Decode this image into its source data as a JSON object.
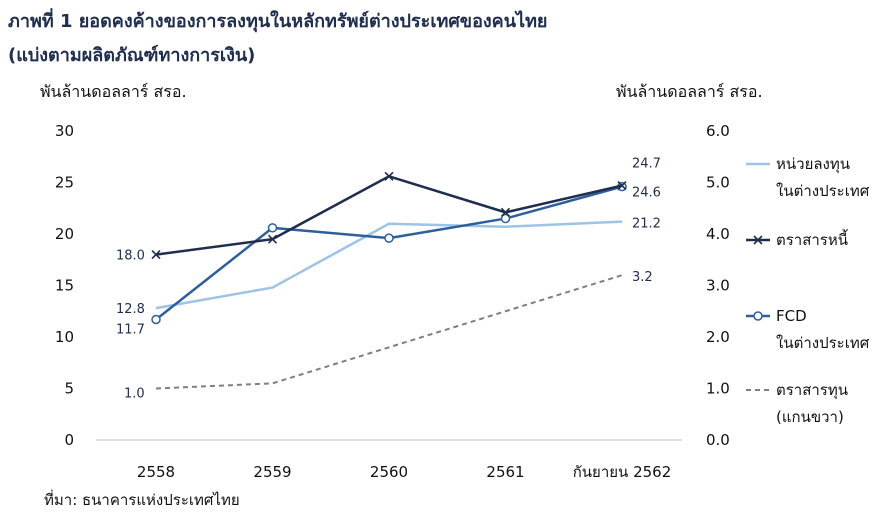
{
  "header": {
    "title": "ภาพที่ 1 ยอดคงค้างของการลงทุนในหลักทรัพย์ต่างประเทศของคนไทย",
    "subtitle": "(แบ่งตามผลิตภัณฑ์ทางการเงิน)",
    "left_unit": "พันล้านดอลลาร์ สรอ.",
    "right_unit": "พันล้านดอลลาร์ สรอ."
  },
  "source": "ที่มา: ธนาคารแห่งประเทศไทย",
  "colors": {
    "unit_trust": "#9dc3e6",
    "debt": "#1f2d4e",
    "fcd": "#2e5f9a",
    "equity": "#7f7f7f"
  },
  "chart_data": {
    "type": "line",
    "categories": [
      "2558",
      "2559",
      "2560",
      "2561",
      "กันยายน 2562"
    ],
    "y_left_ticks": [
      "0",
      "5",
      "10",
      "15",
      "20",
      "25",
      "30"
    ],
    "y_right_ticks": [
      "0.0",
      "1.0",
      "2.0",
      "3.0",
      "4.0",
      "5.0",
      "6.0"
    ],
    "ylim_left": [
      0,
      30
    ],
    "ylim_right": [
      0,
      6
    ],
    "grid": false,
    "legend_position": "right",
    "series": [
      {
        "name": "หน่วยลงทุนในต่างประเทศ",
        "legend_lines": [
          "หน่วยลงทุน",
          "ในต่างประเทศ"
        ],
        "axis": "left",
        "values": [
          12.8,
          14.8,
          21.0,
          20.7,
          21.2
        ],
        "labels": [
          "12.8",
          "",
          "",
          "",
          "21.2"
        ],
        "color_key": "unit_trust",
        "style": "solid",
        "marker": "none"
      },
      {
        "name": "ตราสารหนี้",
        "legend_lines": [
          "ตราสารหนี้"
        ],
        "axis": "left",
        "values": [
          18.0,
          19.5,
          25.6,
          22.1,
          24.7
        ],
        "labels": [
          "18.0",
          "",
          "",
          "",
          "24.7"
        ],
        "color_key": "debt",
        "style": "solid",
        "marker": "x"
      },
      {
        "name": "FCD ในต่างประเทศ",
        "legend_lines": [
          "FCD",
          "ในต่างประเทศ"
        ],
        "axis": "left",
        "values": [
          11.7,
          20.6,
          19.6,
          21.5,
          24.6
        ],
        "labels": [
          "11.7",
          "",
          "",
          "",
          "24.6"
        ],
        "color_key": "fcd",
        "style": "solid",
        "marker": "circle"
      },
      {
        "name": "ตราสารทุน (แกนขวา)",
        "legend_lines": [
          "ตราสารทุน",
          "(แกนขวา)"
        ],
        "axis": "right",
        "values": [
          1.0,
          1.1,
          1.8,
          2.5,
          3.2
        ],
        "labels": [
          "1.0",
          "",
          "",
          "",
          "3.2"
        ],
        "color_key": "equity",
        "style": "dashed",
        "marker": "none"
      }
    ]
  }
}
